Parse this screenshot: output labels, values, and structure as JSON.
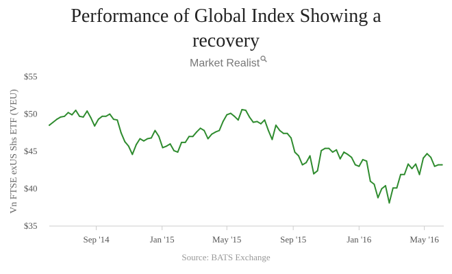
{
  "chart_data": {
    "type": "line",
    "title_lines": [
      "Performance of Global Index Showing a",
      "recovery"
    ],
    "title": "Performance of Global Index Showing a recovery",
    "brand": "Market Realist",
    "ylabel": "Vn FTSE exUS Shs ETF (VEU)",
    "xlabel": "",
    "source": "Source: BATS Exchange",
    "ylim": [
      35,
      55
    ],
    "yticks": [
      35,
      40,
      45,
      50,
      55
    ],
    "ytick_labels": [
      "$35",
      "$40",
      "$45",
      "$50",
      "$55"
    ],
    "xlim": [
      "2014-06-06",
      "2016-06-06"
    ],
    "xticks": [
      "2014-09-01",
      "2015-01-01",
      "2015-05-01",
      "2015-09-01",
      "2016-01-01",
      "2016-05-01"
    ],
    "xtick_labels": [
      "Sep '14",
      "Jan '15",
      "May '15",
      "Sep '15",
      "Jan '16",
      "May '16"
    ],
    "grid": false,
    "line_color": "#2e8b2e",
    "series": [
      {
        "x": [
          "2014-06-06",
          "2014-06-13",
          "2014-06-20",
          "2014-06-27",
          "2014-07-04",
          "2014-07-11",
          "2014-07-18",
          "2014-07-25",
          "2014-08-01",
          "2014-08-08",
          "2014-08-15",
          "2014-08-22",
          "2014-08-29",
          "2014-09-05",
          "2014-09-12",
          "2014-09-19",
          "2014-09-26",
          "2014-10-03",
          "2014-10-10",
          "2014-10-17",
          "2014-10-24",
          "2014-10-31",
          "2014-11-07",
          "2014-11-14",
          "2014-11-21",
          "2014-11-28",
          "2014-12-05",
          "2014-12-12",
          "2014-12-19",
          "2014-12-26",
          "2015-01-02",
          "2015-01-09",
          "2015-01-16",
          "2015-01-23",
          "2015-01-30",
          "2015-02-06",
          "2015-02-13",
          "2015-02-20",
          "2015-02-27",
          "2015-03-06",
          "2015-03-13",
          "2015-03-20",
          "2015-03-27",
          "2015-04-03",
          "2015-04-10",
          "2015-04-17",
          "2015-04-24",
          "2015-05-01",
          "2015-05-08",
          "2015-05-15",
          "2015-05-22",
          "2015-05-29",
          "2015-06-05",
          "2015-06-12",
          "2015-06-19",
          "2015-06-26",
          "2015-07-03",
          "2015-07-10",
          "2015-07-17",
          "2015-07-24",
          "2015-07-31",
          "2015-08-07",
          "2015-08-14",
          "2015-08-21",
          "2015-08-28",
          "2015-09-04",
          "2015-09-11",
          "2015-09-18",
          "2015-09-25",
          "2015-10-02",
          "2015-10-09",
          "2015-10-16",
          "2015-10-23",
          "2015-10-30",
          "2015-11-06",
          "2015-11-13",
          "2015-11-20",
          "2015-11-27",
          "2015-12-04",
          "2015-12-11",
          "2015-12-18",
          "2015-12-25",
          "2016-01-01",
          "2016-01-08",
          "2016-01-15",
          "2016-01-22",
          "2016-01-29",
          "2016-02-05",
          "2016-02-12",
          "2016-02-19",
          "2016-02-26",
          "2016-03-04",
          "2016-03-11",
          "2016-03-18",
          "2016-03-25",
          "2016-04-01",
          "2016-04-08",
          "2016-04-15",
          "2016-04-22",
          "2016-04-29",
          "2016-05-06",
          "2016-05-13",
          "2016-05-20",
          "2016-05-27",
          "2016-06-03"
        ],
        "values": [
          48.5,
          48.9,
          49.3,
          49.6,
          49.7,
          50.2,
          49.9,
          50.5,
          49.7,
          49.6,
          50.4,
          49.5,
          48.4,
          49.3,
          49.7,
          49.7,
          50.0,
          49.3,
          49.2,
          47.5,
          46.3,
          45.7,
          44.6,
          45.9,
          46.7,
          46.4,
          46.7,
          46.8,
          47.8,
          47.0,
          45.5,
          45.7,
          46.0,
          45.1,
          44.9,
          46.2,
          46.2,
          47.0,
          47.0,
          47.6,
          48.1,
          47.8,
          46.7,
          47.3,
          47.6,
          47.8,
          49.0,
          49.9,
          50.1,
          49.7,
          49.2,
          50.6,
          50.5,
          49.6,
          48.9,
          49.0,
          48.7,
          49.2,
          47.8,
          46.6,
          48.5,
          47.8,
          47.4,
          47.4,
          46.8,
          44.9,
          44.4,
          43.2,
          43.5,
          44.4,
          42.0,
          42.4,
          45.1,
          45.4,
          45.4,
          44.9,
          45.2,
          44.0,
          44.9,
          44.6,
          44.2,
          43.2,
          43.0,
          43.9,
          43.7,
          41.0,
          40.6,
          38.8,
          40.0,
          40.4,
          38.1,
          40.1,
          40.1,
          41.9,
          41.9,
          43.3,
          42.7,
          43.3,
          41.9,
          44.1,
          44.7,
          44.2,
          43.0,
          43.2,
          43.2
        ]
      }
    ]
  }
}
